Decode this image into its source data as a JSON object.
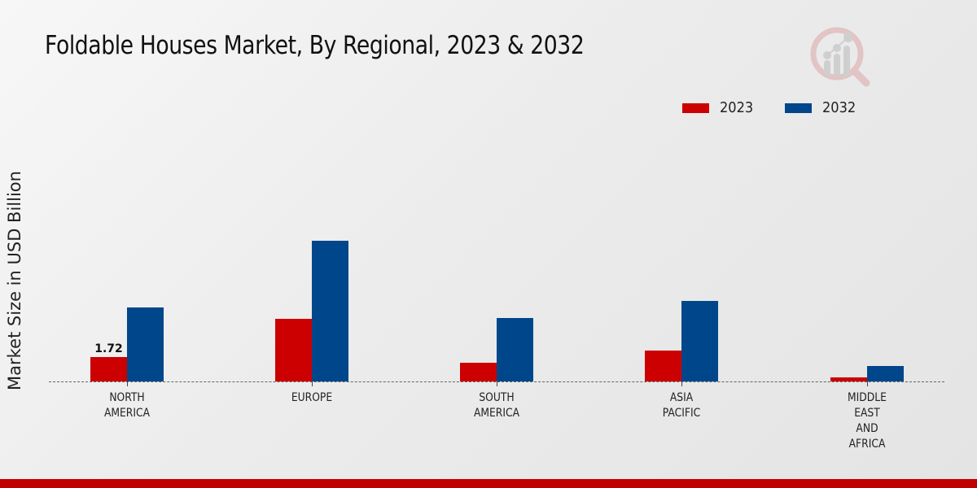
{
  "title": "Foldable Houses Market, By Regional, 2023 & 2032",
  "legend": [
    {
      "label": "2023",
      "color": "#cc0000"
    },
    {
      "label": "2032",
      "color": "#00468b"
    }
  ],
  "logo": {
    "icon": "magnifier-bar-chart-logo-icon"
  },
  "chart_data": {
    "type": "bar",
    "title": "Foldable Houses Market, By Regional, 2023 & 2032",
    "xlabel": "",
    "ylabel": "Market Size in USD Billion",
    "categories": [
      "NORTH AMERICA",
      "EUROPE",
      "SOUTH AMERICA",
      "ASIA PACIFIC",
      "MIDDLE EAST AND AFRICA"
    ],
    "category_lines": [
      [
        "NORTH",
        "AMERICA"
      ],
      [
        "EUROPE"
      ],
      [
        "SOUTH",
        "AMERICA"
      ],
      [
        "ASIA",
        "PACIFIC"
      ],
      [
        "MIDDLE",
        "EAST",
        "AND",
        "AFRICA"
      ]
    ],
    "series": [
      {
        "name": "2023",
        "color": "#cc0000",
        "values": [
          1.72,
          4.4,
          1.3,
          2.2,
          0.3
        ]
      },
      {
        "name": "2032",
        "color": "#00468b",
        "values": [
          5.2,
          9.9,
          4.5,
          5.7,
          1.1
        ]
      }
    ],
    "annotations": [
      {
        "category": "NORTH AMERICA",
        "series": "2023",
        "text": "1.72"
      }
    ],
    "ylim": [
      0,
      10
    ],
    "grid": false,
    "legend_position": "top-right",
    "baseline_style": "dashed"
  }
}
